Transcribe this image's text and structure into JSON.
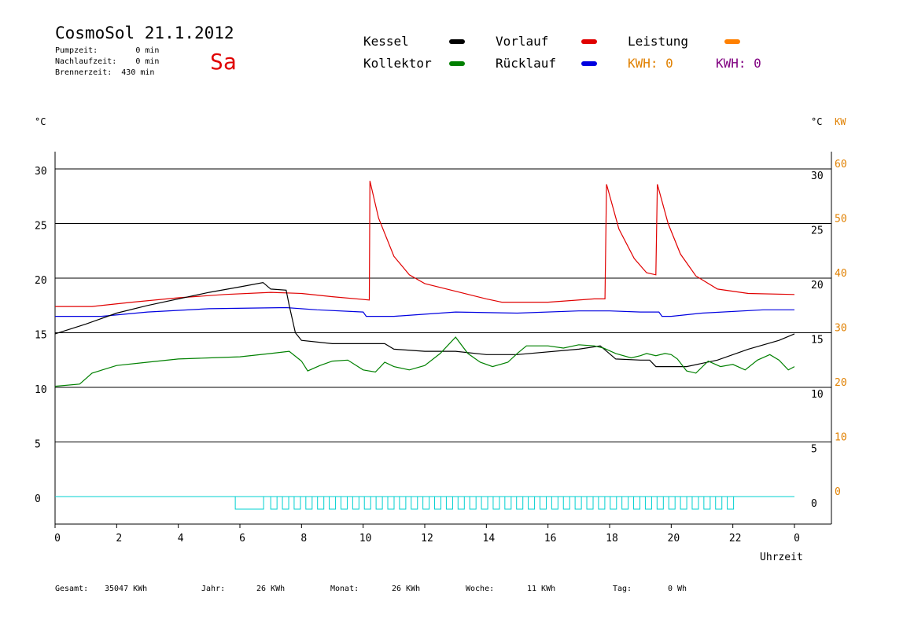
{
  "header": {
    "title": "CosmoSol 21.1.2012",
    "pumpzeit": "Pumpzeit:        0 min",
    "nachlaufzeit": "Nachlaufzeit:    0 min",
    "brennerzeit": "Brennerzeit:  430 min",
    "day": "Sa"
  },
  "legend": {
    "kessel": {
      "label": "Kessel",
      "color": "#000000"
    },
    "vorlauf": {
      "label": "Vorlauf",
      "color": "#e00000"
    },
    "leistung": {
      "label": "Leistung",
      "color": "#ff8000"
    },
    "kollektor": {
      "label": "Kollektor",
      "color": "#008000"
    },
    "ruecklauf": {
      "label": "Rücklauf",
      "color": "#0000e0"
    },
    "kwh_orange": {
      "label": "KWH: 0",
      "color": "#e08000"
    },
    "kwh_purple": {
      "label": "KWH: 0",
      "color": "#800080"
    }
  },
  "axes": {
    "left_unit": "°C",
    "right_unit": "°C",
    "right_unit2": "KW",
    "x_label": "Uhrzeit"
  },
  "footer": {
    "gesamt_label": "Gesamt:",
    "gesamt_value": "35047 KWh",
    "jahr_label": "Jahr:",
    "jahr_value": "26 KWh",
    "monat_label": "Monat:",
    "monat_value": "26 KWh",
    "woche_label": "Woche:",
    "woche_value": "11 KWh",
    "tag_label": "Tag:",
    "tag_value": "0 Wh"
  },
  "chart_data": {
    "type": "line",
    "xlabel": "Uhrzeit",
    "ylabel": "°C",
    "y2label": "KW",
    "xlim": [
      0,
      24
    ],
    "ylim": [
      -2.5,
      32
    ],
    "x_ticks": [
      "0",
      "2",
      "4",
      "6",
      "8",
      "10",
      "12",
      "14",
      "16",
      "18",
      "20",
      "22",
      "0"
    ],
    "y_ticks_left": [
      "0",
      "5",
      "10",
      "15",
      "20",
      "25",
      "30"
    ],
    "y_ticks_right": [
      "0",
      "5",
      "10",
      "15",
      "20",
      "25",
      "30"
    ],
    "y_ticks_right_kw": [
      "0",
      "10",
      "20",
      "30",
      "40",
      "50",
      "60"
    ],
    "grid": true,
    "legend_position": "top",
    "series": [
      {
        "name": "Vorlauf",
        "color": "#e00000",
        "points": [
          [
            0,
            17.4
          ],
          [
            1.2,
            17.4
          ],
          [
            2.5,
            17.8
          ],
          [
            4,
            18.2
          ],
          [
            5.5,
            18.5
          ],
          [
            7,
            18.7
          ],
          [
            8,
            18.6
          ],
          [
            9,
            18.3
          ],
          [
            10.2,
            18.0
          ],
          [
            10.22,
            28.9
          ],
          [
            10.5,
            25.5
          ],
          [
            11,
            22.0
          ],
          [
            11.5,
            20.3
          ],
          [
            12,
            19.5
          ],
          [
            13,
            18.8
          ],
          [
            14,
            18.1
          ],
          [
            14.5,
            17.8
          ],
          [
            16,
            17.8
          ],
          [
            17.5,
            18.1
          ],
          [
            17.85,
            18.1
          ],
          [
            17.9,
            28.6
          ],
          [
            18.3,
            24.5
          ],
          [
            18.8,
            21.8
          ],
          [
            19.2,
            20.5
          ],
          [
            19.5,
            20.3
          ],
          [
            19.55,
            28.6
          ],
          [
            19.9,
            25.0
          ],
          [
            20.3,
            22.2
          ],
          [
            20.8,
            20.2
          ],
          [
            21.5,
            19.0
          ],
          [
            22.5,
            18.6
          ],
          [
            24,
            18.5
          ]
        ]
      },
      {
        "name": "Rücklauf",
        "color": "#0000e0",
        "points": [
          [
            0,
            16.5
          ],
          [
            1.5,
            16.5
          ],
          [
            3,
            16.9
          ],
          [
            5,
            17.2
          ],
          [
            7.5,
            17.3
          ],
          [
            8.5,
            17.1
          ],
          [
            10,
            16.9
          ],
          [
            10.1,
            16.5
          ],
          [
            11,
            16.5
          ],
          [
            12,
            16.7
          ],
          [
            13,
            16.9
          ],
          [
            15,
            16.8
          ],
          [
            17,
            17.0
          ],
          [
            18,
            17.0
          ],
          [
            19,
            16.9
          ],
          [
            19.6,
            16.9
          ],
          [
            19.7,
            16.5
          ],
          [
            20,
            16.5
          ],
          [
            21,
            16.8
          ],
          [
            23,
            17.1
          ],
          [
            24,
            17.1
          ]
        ]
      },
      {
        "name": "Kessel",
        "color": "#000000",
        "points": [
          [
            0,
            14.9
          ],
          [
            1,
            15.8
          ],
          [
            2,
            16.8
          ],
          [
            3,
            17.5
          ],
          [
            4,
            18.1
          ],
          [
            5,
            18.7
          ],
          [
            6,
            19.2
          ],
          [
            6.75,
            19.6
          ],
          [
            7,
            19.0
          ],
          [
            7.5,
            18.9
          ],
          [
            7.6,
            17.5
          ],
          [
            7.8,
            15.0
          ],
          [
            8,
            14.3
          ],
          [
            9,
            14.0
          ],
          [
            10,
            14.0
          ],
          [
            10.7,
            14.0
          ],
          [
            11,
            13.5
          ],
          [
            12,
            13.3
          ],
          [
            13,
            13.3
          ],
          [
            14,
            13.0
          ],
          [
            15,
            13.0
          ],
          [
            17,
            13.5
          ],
          [
            17.7,
            13.8
          ],
          [
            18.2,
            12.6
          ],
          [
            19,
            12.5
          ],
          [
            19.3,
            12.5
          ],
          [
            19.5,
            11.9
          ],
          [
            20.5,
            11.9
          ],
          [
            21.5,
            12.5
          ],
          [
            22.5,
            13.5
          ],
          [
            23.5,
            14.3
          ],
          [
            24,
            14.9
          ]
        ]
      },
      {
        "name": "Kollektor",
        "color": "#008000",
        "points": [
          [
            0,
            10.1
          ],
          [
            0.8,
            10.3
          ],
          [
            1.2,
            11.3
          ],
          [
            2,
            12.0
          ],
          [
            3,
            12.3
          ],
          [
            4,
            12.6
          ],
          [
            5,
            12.7
          ],
          [
            6,
            12.8
          ],
          [
            7,
            13.1
          ],
          [
            7.6,
            13.3
          ],
          [
            8,
            12.4
          ],
          [
            8.2,
            11.5
          ],
          [
            8.6,
            12.0
          ],
          [
            9,
            12.4
          ],
          [
            9.5,
            12.5
          ],
          [
            10,
            11.6
          ],
          [
            10.4,
            11.4
          ],
          [
            10.7,
            12.3
          ],
          [
            11,
            11.9
          ],
          [
            11.5,
            11.6
          ],
          [
            12,
            12.0
          ],
          [
            12.5,
            13.1
          ],
          [
            13,
            14.6
          ],
          [
            13.4,
            13.1
          ],
          [
            13.8,
            12.3
          ],
          [
            14.2,
            11.9
          ],
          [
            14.7,
            12.3
          ],
          [
            15,
            13.1
          ],
          [
            15.3,
            13.8
          ],
          [
            16,
            13.8
          ],
          [
            16.5,
            13.6
          ],
          [
            17,
            13.9
          ],
          [
            17.5,
            13.8
          ],
          [
            17.8,
            13.6
          ],
          [
            18.2,
            13.1
          ],
          [
            18.7,
            12.7
          ],
          [
            19,
            12.9
          ],
          [
            19.2,
            13.1
          ],
          [
            19.5,
            12.9
          ],
          [
            19.8,
            13.1
          ],
          [
            20,
            13.0
          ],
          [
            20.2,
            12.6
          ],
          [
            20.5,
            11.5
          ],
          [
            20.8,
            11.3
          ],
          [
            21.2,
            12.4
          ],
          [
            21.6,
            11.9
          ],
          [
            22,
            12.1
          ],
          [
            22.4,
            11.6
          ],
          [
            22.8,
            12.5
          ],
          [
            23.2,
            13.0
          ],
          [
            23.5,
            12.5
          ],
          [
            23.8,
            11.6
          ],
          [
            24,
            11.9
          ]
        ]
      }
    ]
  }
}
